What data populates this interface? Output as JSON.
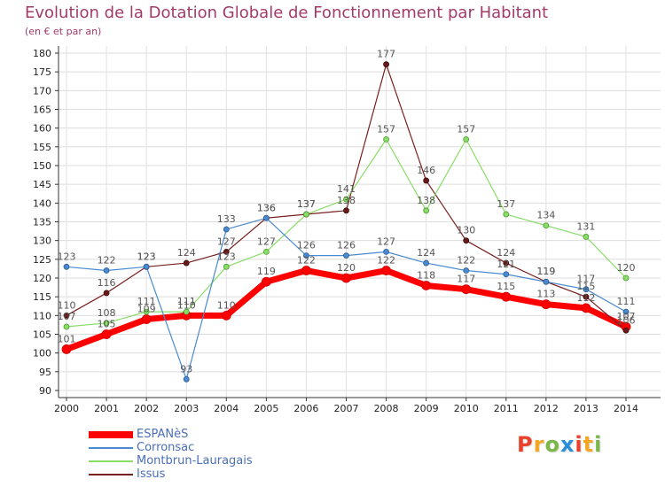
{
  "header": {
    "title": "Evolution de la Dotation Globale de Fonctionnement par Habitant",
    "subtitle": "(en € et par an)"
  },
  "logo": {
    "text": "Proxiti",
    "colors": [
      "#e8402a",
      "#f5a623",
      "#7ab648",
      "#2a8fd8",
      "#e8402a",
      "#f5a623",
      "#7ab648"
    ]
  },
  "chart_data": {
    "type": "line",
    "categories": [
      "2000",
      "2001",
      "2002",
      "2003",
      "2004",
      "2005",
      "2006",
      "2007",
      "2008",
      "2009",
      "2010",
      "2011",
      "2012",
      "2013",
      "2014"
    ],
    "ylim": [
      90,
      180
    ],
    "yticks": [
      90,
      95,
      100,
      105,
      110,
      115,
      120,
      125,
      130,
      135,
      140,
      145,
      150,
      155,
      160,
      165,
      170,
      175,
      180
    ],
    "grid": true,
    "legend_position": "bottom-left",
    "series": [
      {
        "name": "ESPANèS",
        "color": "#ff0000",
        "values": [
          101,
          105,
          109,
          110,
          110,
          119,
          122,
          120,
          122,
          118,
          117,
          115,
          113,
          112,
          107
        ]
      },
      {
        "name": "Corronsac",
        "color": "#4a8ad0",
        "values": [
          123,
          122,
          123,
          93,
          133,
          136,
          126,
          126,
          127,
          124,
          122,
          121,
          119,
          117,
          111
        ]
      },
      {
        "name": "Montbrun-Lauragais",
        "color": "#88dd66",
        "values": [
          107,
          108,
          111,
          111,
          123,
          127,
          137,
          141,
          157,
          138,
          157,
          137,
          134,
          131,
          120
        ]
      },
      {
        "name": "Issus",
        "color": "#7a2020",
        "values": [
          110,
          116,
          123,
          124,
          127,
          136,
          137,
          138,
          177,
          146,
          130,
          124,
          119,
          115,
          106
        ]
      }
    ]
  }
}
